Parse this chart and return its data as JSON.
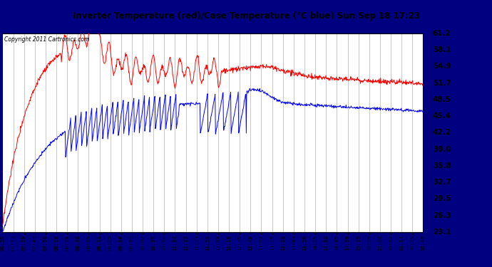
{
  "title": "Inverter Temperature (red)/Case Temperature (°C blue) Sun Sep 18 17:23",
  "copyright": "Copyright 2011 Cartronics.com",
  "background_color": "#000080",
  "plot_bg_color": "#ffffff",
  "grid_color": "#b0b0b0",
  "red_color": "#ff0000",
  "blue_color": "#0000ff",
  "ylim": [
    23.1,
    61.2
  ],
  "yticks": [
    23.1,
    26.3,
    29.5,
    32.7,
    35.8,
    39.0,
    42.2,
    45.4,
    48.5,
    51.7,
    54.9,
    58.1,
    61.2
  ],
  "x_labels": [
    "06:55",
    "07:13",
    "07:29",
    "07:43",
    "07:56",
    "08:10",
    "08:24",
    "08:38",
    "08:55",
    "09:11",
    "09:25",
    "09:38",
    "09:53",
    "10:07",
    "10:37",
    "10:51",
    "11:04",
    "11:17",
    "11:33",
    "11:51",
    "12:04",
    "12:19",
    "12:35",
    "12:49",
    "13:02",
    "13:15",
    "13:29",
    "13:43",
    "13:59",
    "14:15",
    "14:32",
    "14:45",
    "14:59",
    "15:15",
    "15:29",
    "15:44",
    "15:57",
    "16:14",
    "16:29",
    "16:47"
  ],
  "figsize": [
    6.9,
    3.75
  ],
  "dpi": 100
}
